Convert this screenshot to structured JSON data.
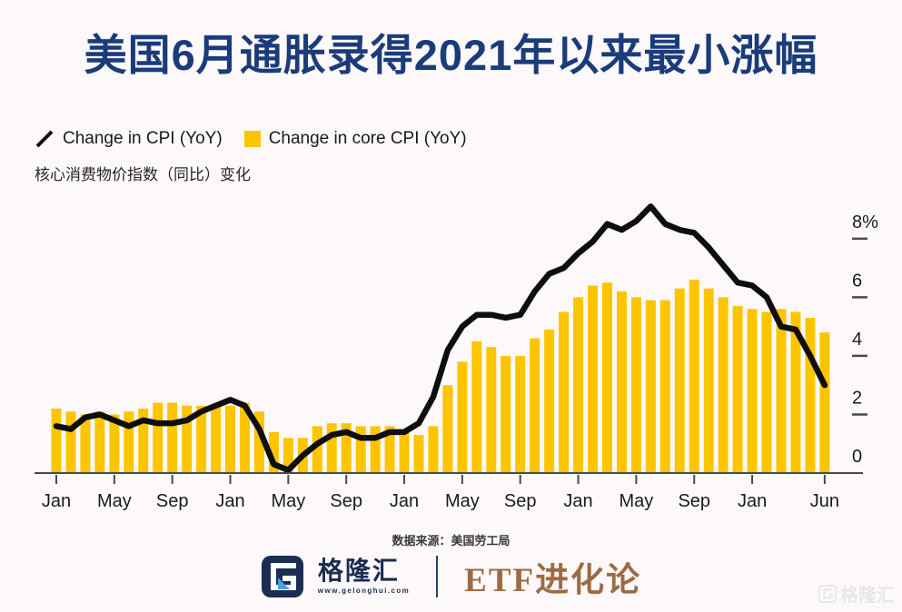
{
  "header": {
    "title": "美国6月通胀录得2021年以来最小涨幅",
    "title_color": "#1B3C7B"
  },
  "chart_data": {
    "type": "combo bar+line",
    "subtitle_cn": "核心消费物价指数（同比）变化",
    "legend_position": "top-left",
    "y_axis_position": "right",
    "grid": false,
    "ylim": [
      0,
      9.6
    ],
    "months_shown": 54,
    "series": [
      {
        "name": "Change in CPI (YoY)",
        "type": "line",
        "color": "#0E0E0E",
        "values": [
          1.6,
          1.5,
          1.9,
          2.0,
          1.8,
          1.6,
          1.8,
          1.7,
          1.7,
          1.8,
          2.1,
          2.3,
          2.5,
          2.3,
          1.5,
          0.3,
          0.1,
          0.6,
          1.0,
          1.3,
          1.4,
          1.2,
          1.2,
          1.4,
          1.4,
          1.7,
          2.6,
          4.2,
          5.0,
          5.4,
          5.4,
          5.3,
          5.4,
          6.2,
          6.8,
          7.0,
          7.5,
          7.9,
          8.5,
          8.3,
          8.6,
          9.1,
          8.5,
          8.3,
          8.2,
          7.7,
          7.1,
          6.5,
          6.4,
          6.0,
          5.0,
          4.9,
          4.0,
          3.0
        ]
      },
      {
        "name": "Change in core CPI (YoY)",
        "type": "bar",
        "color": "#FDC500",
        "values": [
          2.2,
          2.1,
          2.0,
          2.1,
          2.0,
          2.1,
          2.2,
          2.4,
          2.4,
          2.3,
          2.3,
          2.3,
          2.3,
          2.4,
          2.1,
          1.4,
          1.2,
          1.2,
          1.6,
          1.7,
          1.7,
          1.6,
          1.6,
          1.6,
          1.4,
          1.3,
          1.6,
          3.0,
          3.8,
          4.5,
          4.3,
          4.0,
          4.0,
          4.6,
          4.9,
          5.5,
          6.0,
          6.4,
          6.5,
          6.2,
          6.0,
          5.9,
          5.9,
          6.3,
          6.6,
          6.3,
          6.0,
          5.7,
          5.6,
          5.5,
          5.6,
          5.5,
          5.3,
          4.8
        ]
      }
    ],
    "x_tick_labels": [
      {
        "i": 0,
        "label": "Jan"
      },
      {
        "i": 4,
        "label": "May"
      },
      {
        "i": 8,
        "label": "Sep"
      },
      {
        "i": 12,
        "label": "Jan"
      },
      {
        "i": 16,
        "label": "May"
      },
      {
        "i": 20,
        "label": "Sep"
      },
      {
        "i": 24,
        "label": "Jan"
      },
      {
        "i": 28,
        "label": "May"
      },
      {
        "i": 32,
        "label": "Sep"
      },
      {
        "i": 36,
        "label": "Jan"
      },
      {
        "i": 40,
        "label": "May"
      },
      {
        "i": 44,
        "label": "Sep"
      },
      {
        "i": 48,
        "label": "Jan"
      },
      {
        "i": 53,
        "label": "Jun"
      }
    ],
    "y_ticks": [
      {
        "v": 0,
        "label": "0"
      },
      {
        "v": 2,
        "label": "2"
      },
      {
        "v": 4,
        "label": "4"
      },
      {
        "v": 6,
        "label": "6"
      },
      {
        "v": 8,
        "label": "8%"
      }
    ]
  },
  "footer": {
    "source": "数据来源：美国劳工局",
    "brand": {
      "name": "格隆汇",
      "url": "www.gelonghui.com",
      "navy": "#1B2D52",
      "accent": "#4AA0D8"
    },
    "partner": "ETF进化论",
    "partner_color": "#9D6B43",
    "watermark": "格隆汇"
  }
}
